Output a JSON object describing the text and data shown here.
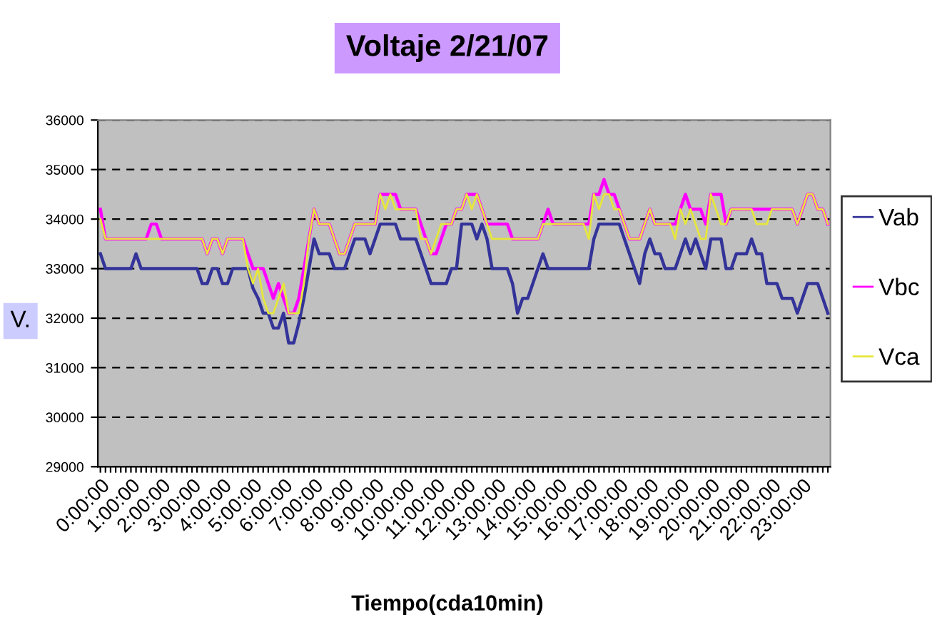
{
  "chart_data": {
    "type": "line",
    "title": "Voltaje 2/21/07",
    "xlabel": "Tiempo(cda10min)",
    "ylabel": "V.",
    "categories": [
      "0:00:00",
      null,
      null,
      null,
      null,
      null,
      "1:00:00",
      null,
      null,
      null,
      null,
      null,
      "2:00:00",
      null,
      null,
      null,
      null,
      null,
      "3:00:00",
      null,
      null,
      null,
      null,
      null,
      "4:00:00",
      null,
      null,
      null,
      null,
      null,
      "5:00:00",
      null,
      null,
      null,
      null,
      null,
      "6:00:00",
      null,
      null,
      null,
      null,
      null,
      "7:00:00",
      null,
      null,
      null,
      null,
      null,
      "8:00:00",
      null,
      null,
      null,
      null,
      null,
      "9:00:00",
      null,
      null,
      null,
      null,
      null,
      "10:00:00",
      null,
      null,
      null,
      null,
      null,
      "11:00:00",
      null,
      null,
      null,
      null,
      null,
      "12:00:00",
      null,
      null,
      null,
      null,
      null,
      "13:00:00",
      null,
      null,
      null,
      null,
      null,
      "14:00:00",
      null,
      null,
      null,
      null,
      null,
      "15:00:00",
      null,
      null,
      null,
      null,
      null,
      "16:00:00",
      null,
      null,
      null,
      null,
      null,
      "17:00:00",
      null,
      null,
      null,
      null,
      null,
      "18:00:00",
      null,
      null,
      null,
      null,
      null,
      "19:00:00",
      null,
      null,
      null,
      null,
      null,
      "20:00:00",
      null,
      null,
      null,
      null,
      null,
      "21:00:00",
      null,
      null,
      null,
      null,
      null,
      "22:00:00",
      null,
      null,
      null,
      null,
      null,
      "23:00:00",
      null,
      null,
      null,
      null,
      null
    ],
    "series": [
      {
        "name": "Vab",
        "color": "#333399",
        "values": [
          33300,
          33000,
          33000,
          33000,
          33000,
          33000,
          33000,
          33300,
          33000,
          33000,
          33000,
          33000,
          33000,
          33000,
          33000,
          33000,
          33000,
          33000,
          33000,
          33000,
          32700,
          32700,
          33000,
          33000,
          32700,
          32700,
          33000,
          33000,
          33000,
          33000,
          32600,
          32400,
          32100,
          32100,
          31800,
          31800,
          32100,
          31500,
          31500,
          31900,
          32400,
          33000,
          33600,
          33300,
          33300,
          33300,
          33000,
          33000,
          33000,
          33300,
          33600,
          33600,
          33600,
          33300,
          33600,
          33900,
          33900,
          33900,
          33900,
          33600,
          33600,
          33600,
          33600,
          33300,
          33000,
          32700,
          32700,
          32700,
          32700,
          33000,
          33000,
          33900,
          33900,
          33900,
          33600,
          33900,
          33600,
          33000,
          33000,
          33000,
          33000,
          32700,
          32100,
          32400,
          32400,
          32700,
          33000,
          33300,
          33000,
          33000,
          33000,
          33000,
          33000,
          33000,
          33000,
          33000,
          33000,
          33600,
          33900,
          33900,
          33900,
          33900,
          33900,
          33600,
          33300,
          33000,
          32700,
          33300,
          33600,
          33300,
          33300,
          33000,
          33000,
          33000,
          33300,
          33600,
          33300,
          33600,
          33300,
          33000,
          33600,
          33600,
          33600,
          33000,
          33000,
          33300,
          33300,
          33300,
          33600,
          33300,
          33300,
          32700,
          32700,
          32700,
          32400,
          32400,
          32400,
          32100,
          32400,
          32700,
          32700,
          32700,
          32400,
          32100
        ]
      },
      {
        "name": "Vbc",
        "color": "#ff00ff",
        "values": [
          34200,
          33600,
          33600,
          33600,
          33600,
          33600,
          33600,
          33600,
          33600,
          33600,
          33900,
          33900,
          33600,
          33600,
          33600,
          33600,
          33600,
          33600,
          33600,
          33600,
          33600,
          33300,
          33600,
          33600,
          33300,
          33600,
          33600,
          33600,
          33600,
          33300,
          33000,
          33000,
          33000,
          32700,
          32400,
          32700,
          32400,
          32100,
          32100,
          32400,
          33000,
          33600,
          34200,
          33900,
          33900,
          33900,
          33600,
          33300,
          33300,
          33600,
          33900,
          33900,
          33900,
          33900,
          33900,
          34500,
          34500,
          34500,
          34500,
          34200,
          34200,
          34200,
          34200,
          33900,
          33600,
          33300,
          33300,
          33600,
          33900,
          33900,
          34200,
          34200,
          34500,
          34500,
          34500,
          34200,
          33900,
          33900,
          33900,
          33900,
          33900,
          33600,
          33600,
          33600,
          33600,
          33600,
          33600,
          33900,
          34200,
          33900,
          33900,
          33900,
          33900,
          33900,
          33900,
          33900,
          33900,
          34500,
          34500,
          34800,
          34500,
          34500,
          34200,
          33900,
          33600,
          33600,
          33600,
          33900,
          34200,
          33900,
          33900,
          33900,
          33900,
          33900,
          34200,
          34500,
          34200,
          34200,
          34200,
          33900,
          34500,
          34500,
          34500,
          33900,
          34200,
          34200,
          34200,
          34200,
          34200,
          34200,
          34200,
          34200,
          34200,
          34200,
          34200,
          34200,
          34200,
          33900,
          34200,
          34500,
          34500,
          34200,
          34200,
          33900
        ]
      },
      {
        "name": "Vca",
        "color": "#e6e63c",
        "values": [
          34000,
          33600,
          33600,
          33600,
          33600,
          33600,
          33600,
          33600,
          33600,
          33600,
          33600,
          33600,
          33600,
          33600,
          33600,
          33600,
          33600,
          33600,
          33600,
          33600,
          33600,
          33300,
          33600,
          33600,
          33300,
          33600,
          33600,
          33600,
          33600,
          33000,
          32700,
          33000,
          32400,
          32100,
          32100,
          32400,
          32700,
          32100,
          32100,
          32100,
          32700,
          33600,
          34200,
          33900,
          33900,
          33900,
          33600,
          33300,
          33300,
          33600,
          33900,
          33900,
          33900,
          33900,
          33900,
          34500,
          34200,
          34500,
          34200,
          34200,
          34200,
          34200,
          34200,
          33600,
          33600,
          33300,
          33600,
          33900,
          33900,
          33900,
          34200,
          34200,
          34500,
          34200,
          34500,
          34200,
          33900,
          33600,
          33600,
          33600,
          33600,
          33600,
          33600,
          33600,
          33600,
          33600,
          33600,
          33900,
          33900,
          33900,
          33900,
          33900,
          33900,
          33900,
          33900,
          33900,
          33600,
          34500,
          34200,
          34500,
          34500,
          34200,
          34200,
          33900,
          33600,
          33600,
          33600,
          33900,
          34200,
          33900,
          33900,
          33900,
          33900,
          33600,
          34200,
          33900,
          34200,
          33900,
          33600,
          33600,
          34500,
          34200,
          33900,
          33900,
          34200,
          34200,
          34200,
          34200,
          34200,
          33900,
          33900,
          33900,
          34200,
          34200,
          34200,
          34200,
          34200,
          33900,
          34200,
          34500,
          34500,
          34200,
          34200,
          33900
        ]
      }
    ],
    "ylim": [
      29000,
      36000
    ],
    "yticks": [
      29000,
      30000,
      31000,
      32000,
      33000,
      34000,
      35000,
      36000
    ],
    "grid": "y",
    "legend": "right",
    "marker": "none",
    "line_style": "solid"
  }
}
